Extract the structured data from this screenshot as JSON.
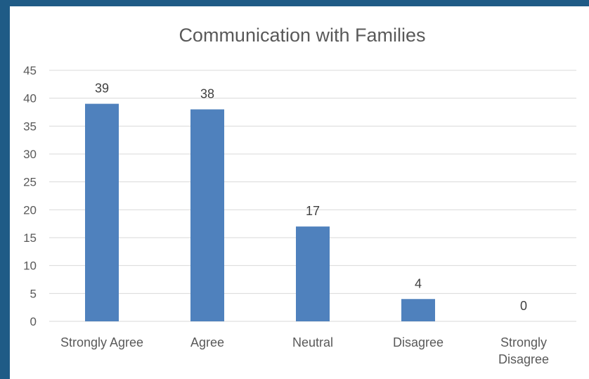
{
  "chart_data": {
    "type": "bar",
    "title": "Communication with Families",
    "xlabel": "",
    "ylabel": "",
    "categories": [
      "Strongly Agree",
      "Agree",
      "Neutral",
      "Disagree",
      "Strongly Disagree"
    ],
    "category_lines": [
      [
        "Strongly Agree"
      ],
      [
        "Agree"
      ],
      [
        "Neutral"
      ],
      [
        "Disagree"
      ],
      [
        "Strongly",
        "Disagree"
      ]
    ],
    "values": [
      39,
      38,
      17,
      4,
      0
    ],
    "ylim": [
      0,
      45
    ],
    "yticks": [
      0,
      5,
      10,
      15,
      20,
      25,
      30,
      35,
      40,
      45
    ],
    "grid": true,
    "legend": "none",
    "data_labels": true,
    "colors": {
      "bar": "#4f81bd",
      "grid": "#d9d9d9",
      "text": "#595959",
      "frame": "#1f5b86"
    }
  }
}
